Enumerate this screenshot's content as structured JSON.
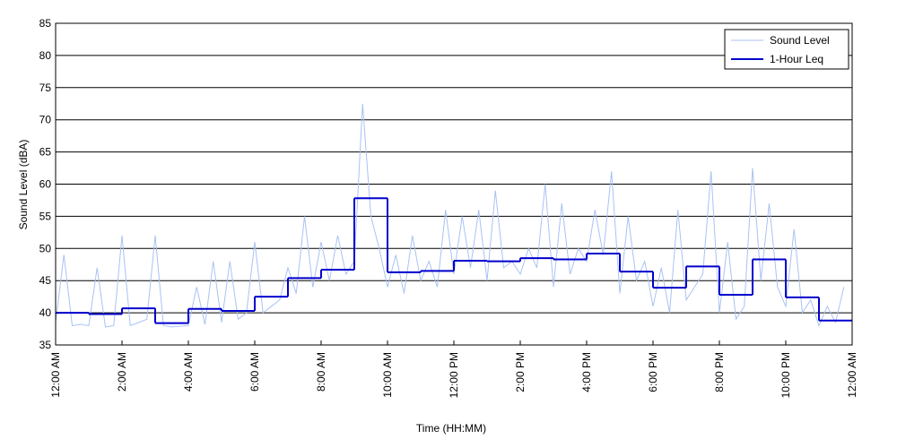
{
  "chart_data": {
    "type": "line",
    "x_label": "Time (HH:MM)",
    "y_label": "Sound Level (dBA)",
    "xlim": [
      0,
      24
    ],
    "ylim": [
      35,
      85
    ],
    "yticks": [
      35,
      40,
      45,
      50,
      55,
      60,
      65,
      70,
      75,
      80,
      85
    ],
    "xticks": [
      {
        "value": 0,
        "label": "12:00 AM"
      },
      {
        "value": 2,
        "label": "2:00 AM"
      },
      {
        "value": 4,
        "label": "4:00 AM"
      },
      {
        "value": 6,
        "label": "6:00 AM"
      },
      {
        "value": 8,
        "label": "8:00 AM"
      },
      {
        "value": 10,
        "label": "10:00 AM"
      },
      {
        "value": 12,
        "label": "12:00 PM"
      },
      {
        "value": 14,
        "label": "2:00 PM"
      },
      {
        "value": 16,
        "label": "4:00 PM"
      },
      {
        "value": 18,
        "label": "6:00 PM"
      },
      {
        "value": 20,
        "label": "8:00 PM"
      },
      {
        "value": 22,
        "label": "10:00 PM"
      },
      {
        "value": 24,
        "label": "12:00 AM"
      }
    ],
    "grid": true,
    "legend": "upper right",
    "series": [
      {
        "name": "Sound Level",
        "color": "#a9c2f5",
        "style": "line",
        "x": [
          0,
          0.25,
          0.5,
          0.75,
          1,
          1.25,
          1.5,
          1.75,
          2,
          2.25,
          2.5,
          2.75,
          3,
          3.25,
          3.5,
          3.75,
          4,
          4.25,
          4.5,
          4.75,
          5,
          5.25,
          5.5,
          5.75,
          6,
          6.25,
          6.5,
          6.75,
          7,
          7.25,
          7.5,
          7.75,
          8,
          8.25,
          8.5,
          8.75,
          9,
          9.25,
          9.5,
          9.75,
          10,
          10.25,
          10.5,
          10.75,
          11,
          11.25,
          11.5,
          11.75,
          12,
          12.25,
          12.5,
          12.75,
          13,
          13.25,
          13.5,
          13.75,
          14,
          14.25,
          14.5,
          14.75,
          15,
          15.25,
          15.5,
          15.75,
          16,
          16.25,
          16.5,
          16.75,
          17,
          17.25,
          17.5,
          17.75,
          18,
          18.25,
          18.5,
          18.75,
          19,
          19.25,
          19.5,
          19.75,
          20,
          20.25,
          20.5,
          20.75,
          21,
          21.25,
          21.5,
          21.75,
          22,
          22.25,
          22.5,
          22.75,
          23,
          23.25,
          23.5,
          23.75
        ],
        "values": [
          38.5,
          49,
          38,
          38.2,
          38,
          47,
          37.8,
          38,
          52,
          38,
          38.5,
          39,
          52,
          38,
          37.8,
          37.9,
          38,
          44,
          38.2,
          48,
          38.5,
          48,
          39,
          40,
          51,
          40,
          41,
          42,
          47,
          43,
          55,
          44,
          51,
          45,
          52,
          46,
          48,
          72.5,
          55,
          50,
          44,
          49,
          43,
          52,
          45,
          48,
          44,
          56,
          46,
          55,
          47,
          56,
          45,
          59,
          47,
          48,
          46,
          50,
          47,
          60,
          44,
          57,
          46,
          50,
          48,
          56,
          49,
          62,
          43,
          55,
          45,
          48,
          41,
          47,
          40,
          56,
          42,
          44,
          46,
          62,
          40,
          51,
          39,
          41,
          62.5,
          45,
          57,
          44,
          41,
          53,
          40,
          42,
          38,
          41,
          38.5,
          44
        ]
      },
      {
        "name": "1-Hour Leq",
        "color": "#0000cc",
        "style": "step",
        "x": [
          0,
          1,
          2,
          3,
          4,
          5,
          6,
          7,
          8,
          9,
          10,
          11,
          12,
          13,
          14,
          15,
          16,
          17,
          18,
          19,
          20,
          21,
          22,
          23
        ],
        "values": [
          40.0,
          39.8,
          40.7,
          38.4,
          40.6,
          40.3,
          42.5,
          45.4,
          46.7,
          57.8,
          46.3,
          46.5,
          48.1,
          48.0,
          48.5,
          48.3,
          49.2,
          46.4,
          43.9,
          47.2,
          42.8,
          48.3,
          42.4,
          38.8
        ]
      }
    ]
  }
}
